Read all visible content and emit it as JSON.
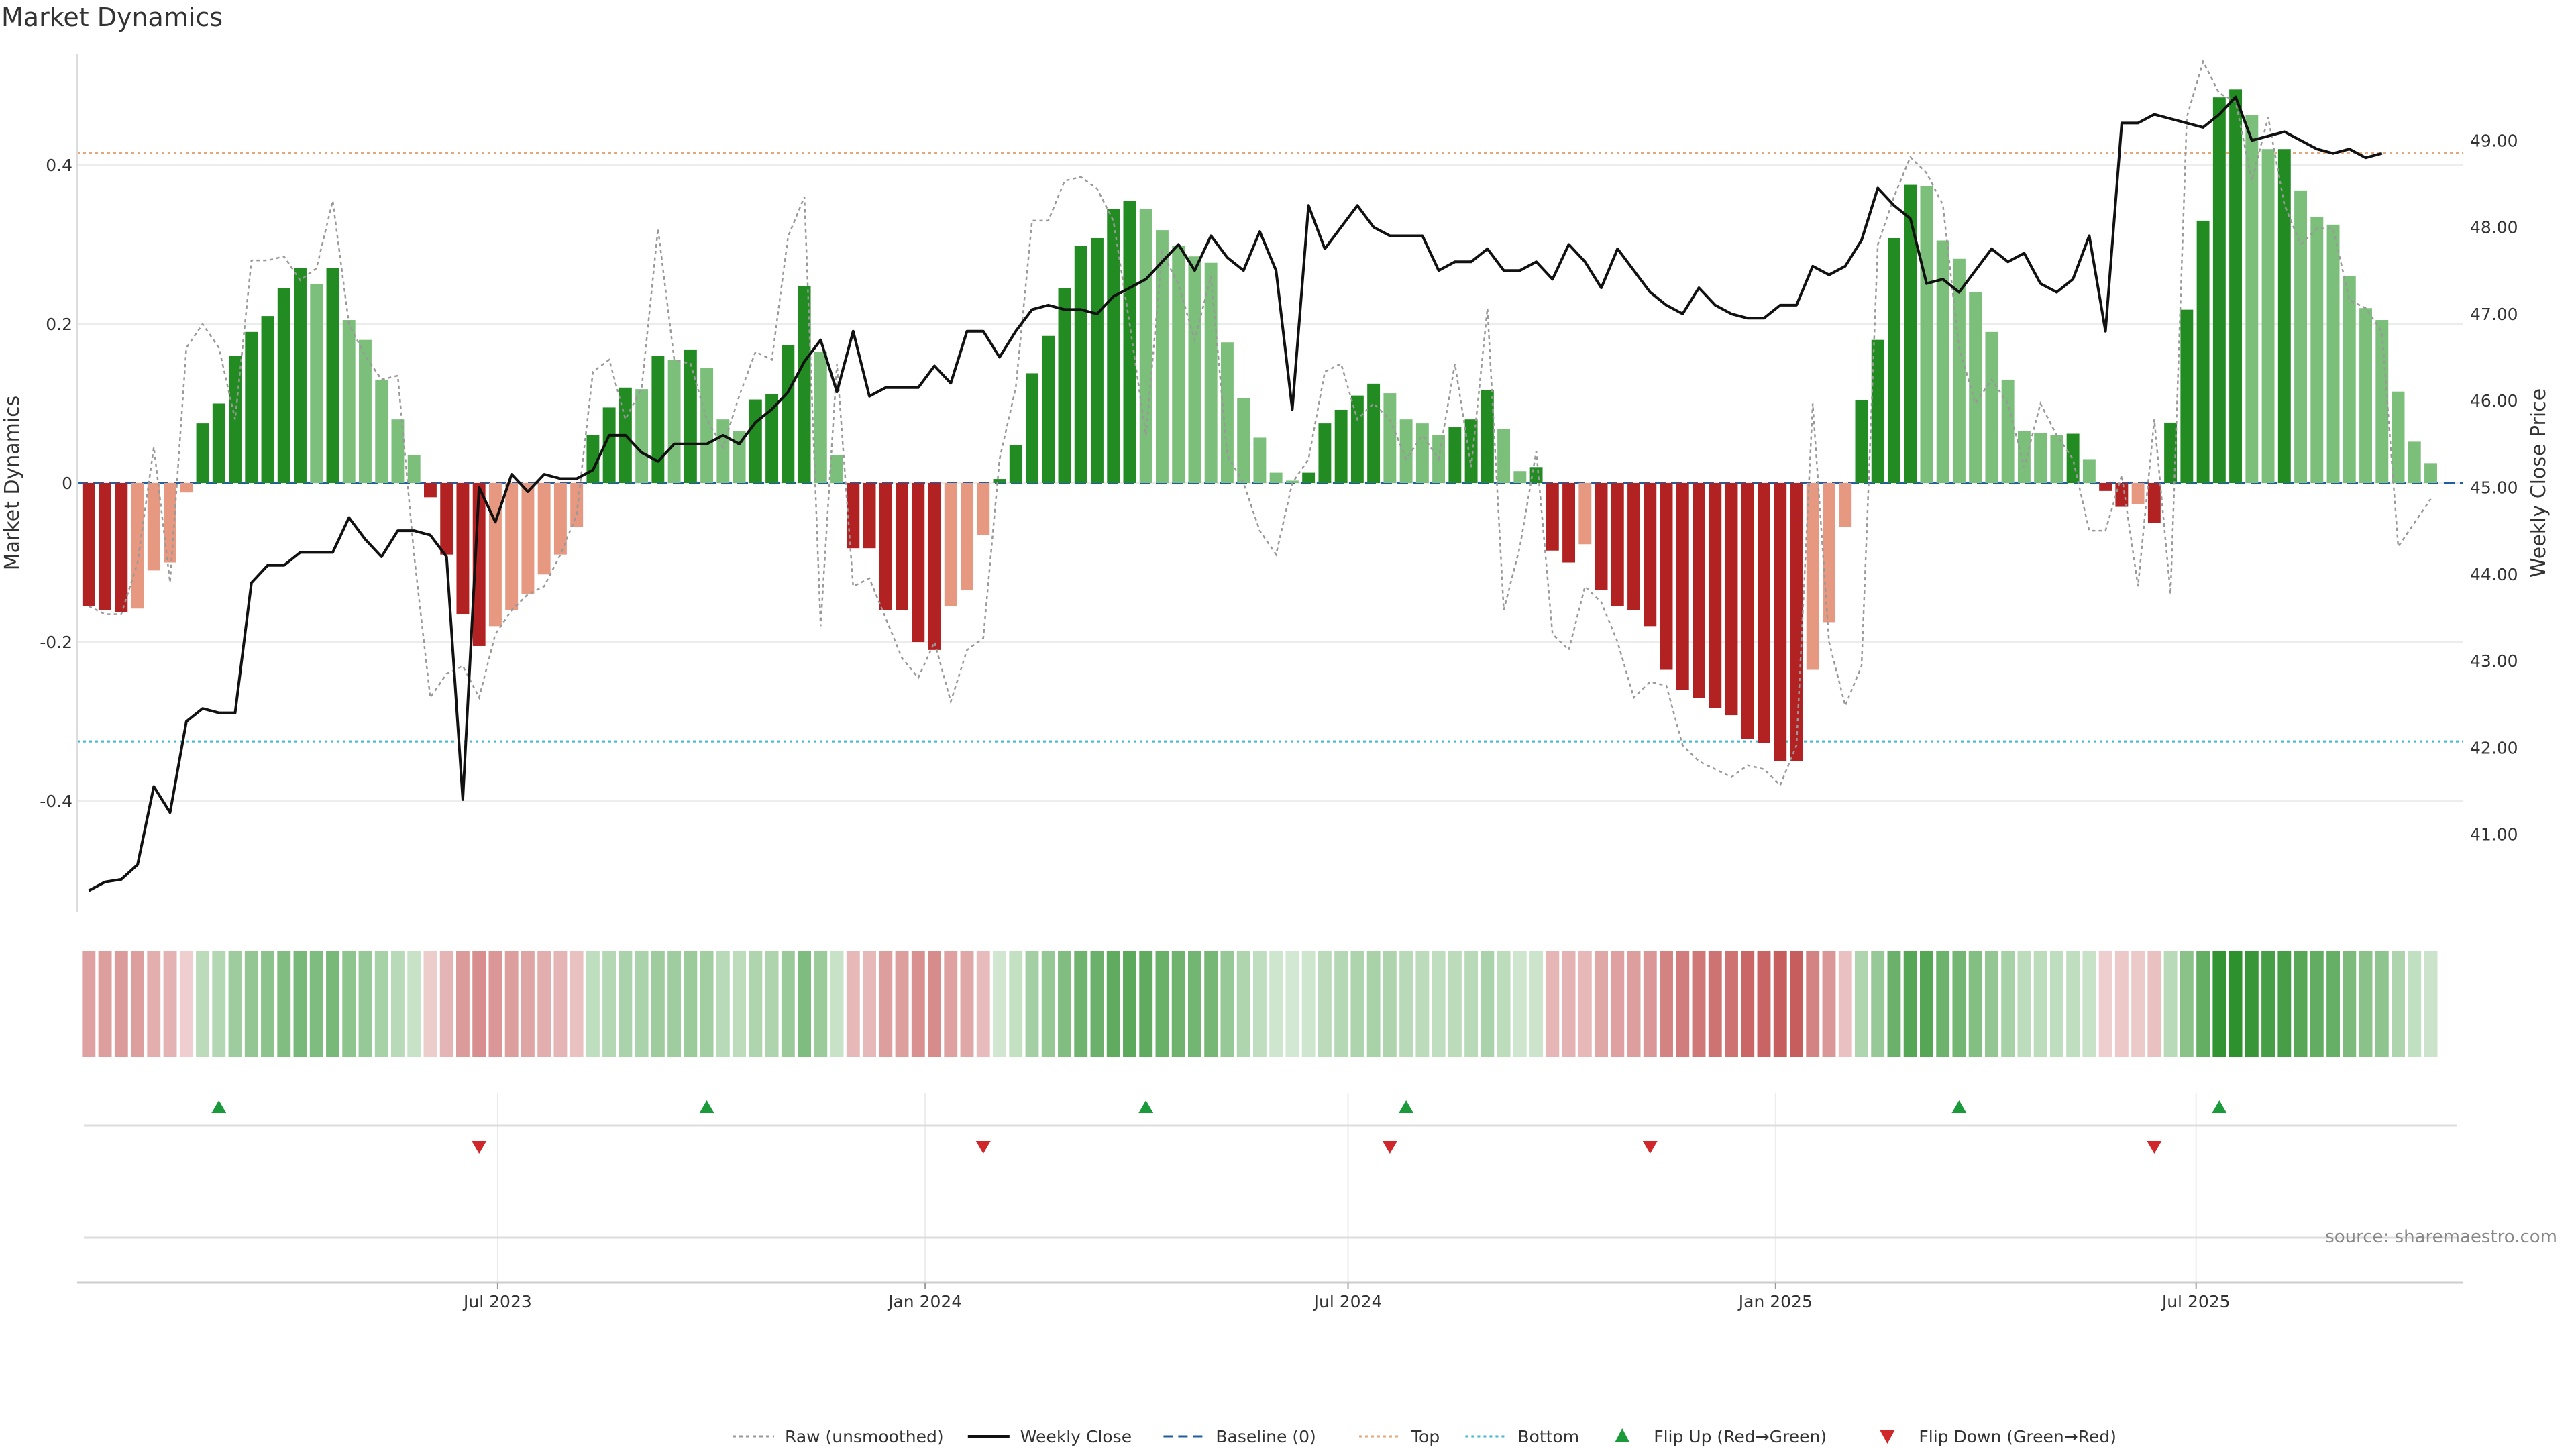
{
  "title": "Market Dynamics",
  "source_text": "source: sharemaestro.com",
  "colors": {
    "strong_green": "#228b22",
    "light_green": "#7bbf7b",
    "strong_red": "#b22222",
    "light_red": "#e69880",
    "price_line": "#111111",
    "raw_line": "#999999",
    "baseline": "#1f5f9f",
    "top": "#e3a77a",
    "bottom": "#3fb8d0",
    "flip_up": "#1a9a3a",
    "flip_down": "#d0282a"
  },
  "chart_data": {
    "type": "bar",
    "title": "Market Dynamics",
    "ylabel_left": "Market Dynamics",
    "ylabel_right": "Weekly Close Price",
    "ylim_left": [
      -0.54,
      0.54
    ],
    "ylim_right": [
      40.1,
      50.0
    ],
    "yticks_left": [
      "-0.4",
      "-0.2",
      "0",
      "0.2",
      "0.4"
    ],
    "yticks_right": [
      "41.00",
      "42.00",
      "43.00",
      "44.00",
      "45.00",
      "46.00",
      "47.00",
      "48.00",
      "49.00"
    ],
    "x_range": [
      "2023-01-01",
      "2025-10-24"
    ],
    "xticks": [
      {
        "date": "2023-07-01",
        "label": "Jul 2023"
      },
      {
        "date": "2024-01-01",
        "label": "Jan 2024"
      },
      {
        "date": "2024-07-01",
        "label": "Jul 2024"
      },
      {
        "date": "2025-01-01",
        "label": "Jan 2025"
      },
      {
        "date": "2025-07-01",
        "label": "Jul 2025"
      }
    ],
    "top_line": 0.415,
    "bottom_line": -0.325,
    "baseline": 0,
    "legend": [
      "Raw (unsmoothed)",
      "Weekly Close",
      "Baseline (0)",
      "Top",
      "Bottom",
      "Flip Up (Red→Green)",
      "Flip Down (Green→Red)"
    ],
    "start_date": "2023-01-06",
    "week_step": 7,
    "dynamics": [
      -0.155,
      -0.16,
      -0.162,
      -0.158,
      -0.11,
      -0.1,
      -0.012,
      0.075,
      0.1,
      0.16,
      0.19,
      0.21,
      0.245,
      0.27,
      0.25,
      0.27,
      0.205,
      0.18,
      0.13,
      0.08,
      0.035,
      -0.018,
      -0.09,
      -0.165,
      -0.205,
      -0.18,
      -0.16,
      -0.14,
      -0.115,
      -0.09,
      -0.055,
      0.06,
      0.095,
      0.12,
      0.118,
      0.16,
      0.155,
      0.168,
      0.145,
      0.08,
      0.065,
      0.105,
      0.112,
      0.173,
      0.248,
      0.165,
      0.035,
      -0.082,
      -0.082,
      -0.16,
      -0.16,
      -0.2,
      -0.21,
      -0.155,
      -0.135,
      -0.065,
      0.005,
      0.048,
      0.138,
      0.185,
      0.245,
      0.298,
      0.308,
      0.345,
      0.355,
      0.345,
      0.318,
      0.298,
      0.285,
      0.277,
      0.177,
      0.107,
      0.057,
      0.013,
      0.003,
      0.013,
      0.075,
      0.092,
      0.11,
      0.125,
      0.113,
      0.08,
      0.075,
      0.06,
      0.07,
      0.08,
      0.117,
      0.068,
      0.015,
      0.02,
      -0.085,
      -0.1,
      -0.077,
      -0.135,
      -0.155,
      -0.16,
      -0.18,
      -0.235,
      -0.26,
      -0.27,
      -0.283,
      -0.292,
      -0.322,
      -0.327,
      -0.35,
      -0.35,
      -0.235,
      -0.175,
      -0.055,
      0.104,
      0.18,
      0.308,
      0.375,
      0.373,
      0.305,
      0.282,
      0.24,
      0.19,
      0.13,
      0.065,
      0.063,
      0.06,
      0.062,
      0.03,
      -0.01,
      -0.03,
      -0.027,
      -0.05,
      0.076,
      0.218,
      0.33,
      0.485,
      0.495,
      0.463,
      0.42,
      0.42,
      0.368,
      0.335,
      0.325,
      0.26,
      0.22,
      0.205,
      0.115,
      0.052,
      0.025
    ],
    "raw": [
      -0.155,
      -0.165,
      -0.165,
      -0.1,
      0.045,
      -0.125,
      0.17,
      0.2,
      0.17,
      0.08,
      0.28,
      0.28,
      0.285,
      0.255,
      0.27,
      0.355,
      0.2,
      0.16,
      0.13,
      0.135,
      -0.09,
      -0.27,
      -0.24,
      -0.23,
      -0.27,
      -0.19,
      -0.16,
      -0.14,
      -0.13,
      -0.09,
      -0.04,
      0.14,
      0.155,
      0.08,
      0.12,
      0.32,
      0.155,
      0.15,
      0.08,
      0.045,
      0.11,
      0.165,
      0.155,
      0.31,
      0.36,
      -0.18,
      0.15,
      -0.13,
      -0.12,
      -0.17,
      -0.22,
      -0.245,
      -0.2,
      -0.275,
      -0.21,
      -0.195,
      0.03,
      0.12,
      0.33,
      0.33,
      0.38,
      0.385,
      0.37,
      0.33,
      0.2,
      0.06,
      0.29,
      0.25,
      0.18,
      0.26,
      0.035,
      0.0,
      -0.06,
      -0.09,
      0.0,
      0.03,
      0.14,
      0.15,
      0.08,
      0.1,
      0.08,
      0.03,
      0.06,
      0.03,
      0.15,
      0.02,
      0.22,
      -0.16,
      -0.08,
      0.04,
      -0.19,
      -0.21,
      -0.13,
      -0.15,
      -0.2,
      -0.27,
      -0.25,
      -0.255,
      -0.33,
      -0.35,
      -0.36,
      -0.37,
      -0.355,
      -0.36,
      -0.38,
      -0.33,
      0.1,
      -0.2,
      -0.28,
      -0.23,
      0.3,
      0.36,
      0.41,
      0.39,
      0.35,
      0.17,
      0.1,
      0.13,
      0.1,
      0.02,
      0.1,
      0.06,
      0.03,
      -0.06,
      -0.06,
      0.01,
      -0.13,
      0.08,
      -0.14,
      0.46,
      0.53,
      0.49,
      0.48,
      0.38,
      0.46,
      0.35,
      0.3,
      0.32,
      0.32,
      0.23,
      0.22,
      0.19,
      -0.08,
      -0.05,
      -0.02
    ],
    "close": [
      40.35,
      40.45,
      40.48,
      40.65,
      41.55,
      41.25,
      42.3,
      42.45,
      42.4,
      42.4,
      43.9,
      44.1,
      44.1,
      44.25,
      44.25,
      44.25,
      44.65,
      44.4,
      44.2,
      44.5,
      44.5,
      44.45,
      44.2,
      41.4,
      45.0,
      44.6,
      45.15,
      44.95,
      45.15,
      45.1,
      45.1,
      45.2,
      45.6,
      45.6,
      45.4,
      45.3,
      45.5,
      45.5,
      45.5,
      45.6,
      45.5,
      45.75,
      45.9,
      46.1,
      46.45,
      46.7,
      46.1,
      46.8,
      46.05,
      46.15,
      46.15,
      46.15,
      46.4,
      46.2,
      46.8,
      46.8,
      46.5,
      46.8,
      47.05,
      47.1,
      47.05,
      47.05,
      47.0,
      47.2,
      47.3,
      47.4,
      47.6,
      47.8,
      47.5,
      47.9,
      47.65,
      47.5,
      47.95,
      47.5,
      45.9,
      48.25,
      47.75,
      48.0,
      48.25,
      48.0,
      47.9,
      47.9,
      47.9,
      47.5,
      47.6,
      47.6,
      47.75,
      47.5,
      47.5,
      47.6,
      47.4,
      47.8,
      47.6,
      47.3,
      47.75,
      47.5,
      47.25,
      47.1,
      47.0,
      47.3,
      47.1,
      47.0,
      46.95,
      46.95,
      47.1,
      47.1,
      47.55,
      47.45,
      47.55,
      47.85,
      48.45,
      48.25,
      48.1,
      47.35,
      47.4,
      47.25,
      47.5,
      47.75,
      47.6,
      47.7,
      47.35,
      47.25,
      47.4,
      47.9,
      46.8,
      49.2,
      49.2,
      49.3,
      49.25,
      49.2,
      49.15,
      49.3,
      49.5,
      49.0,
      49.05,
      49.1,
      49.0,
      48.9,
      48.85,
      48.9,
      48.8,
      48.85
    ],
    "flip_up_dates": [
      "2023-03-03",
      "2023-09-29",
      "2024-04-05",
      "2024-07-26",
      "2025-03-21",
      "2025-07-11"
    ],
    "flip_down_dates": [
      "2023-06-23",
      "2024-01-26",
      "2024-07-19",
      "2024-11-08",
      "2025-06-13"
    ]
  }
}
